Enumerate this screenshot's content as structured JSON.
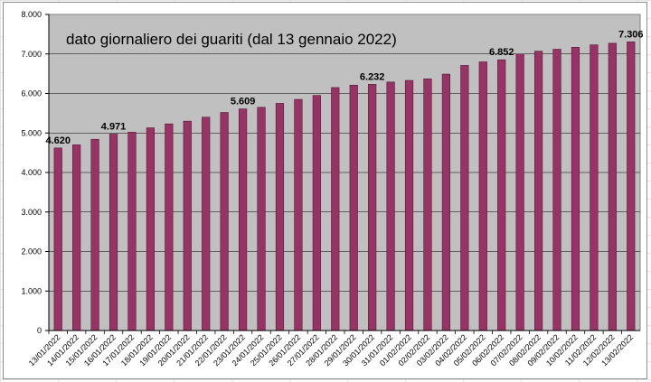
{
  "chart_data": {
    "type": "bar",
    "title": "dato giornaliero dei guariti (dal 13 gennaio 2022)",
    "xlabel": "",
    "ylabel": "",
    "ylim": [
      0,
      8000
    ],
    "yticks": [
      "0",
      "1.000",
      "2.000",
      "3.000",
      "4.000",
      "5.000",
      "6.000",
      "7.000",
      "8.000"
    ],
    "grid": "horizontal",
    "legend": "none",
    "bar_color": "#993366",
    "plot_background": "#c0c0c0",
    "categories": [
      "13/01/2022",
      "14/01/2022",
      "15/01/2022",
      "16/01/2022",
      "17/01/2022",
      "18/01/2022",
      "19/01/2022",
      "20/01/2022",
      "21/01/2022",
      "22/01/2022",
      "23/01/2022",
      "24/01/2022",
      "25/01/2022",
      "26/01/2022",
      "27/01/2022",
      "28/01/2022",
      "29/01/2022",
      "30/01/2022",
      "31/01/2022",
      "01/02/2022",
      "02/02/2022",
      "03/02/2022",
      "04/02/2022",
      "05/02/2022",
      "06/02/2022",
      "07/02/2022",
      "08/02/2022",
      "09/02/2022",
      "10/02/2022",
      "11/02/2022",
      "12/02/2022",
      "13/02/2022"
    ],
    "values": [
      4620,
      4700,
      4840,
      4971,
      5020,
      5130,
      5230,
      5300,
      5400,
      5520,
      5609,
      5650,
      5750,
      5850,
      5950,
      6150,
      6210,
      6232,
      6290,
      6330,
      6370,
      6490,
      6710,
      6800,
      6852,
      7000,
      7070,
      7120,
      7170,
      7230,
      7270,
      7306
    ],
    "data_labels": [
      {
        "index": 0,
        "text": "4.620"
      },
      {
        "index": 3,
        "text": "4.971"
      },
      {
        "index": 10,
        "text": "5.609"
      },
      {
        "index": 17,
        "text": "6.232"
      },
      {
        "index": 24,
        "text": "6.852"
      },
      {
        "index": 31,
        "text": "7.306"
      }
    ]
  }
}
